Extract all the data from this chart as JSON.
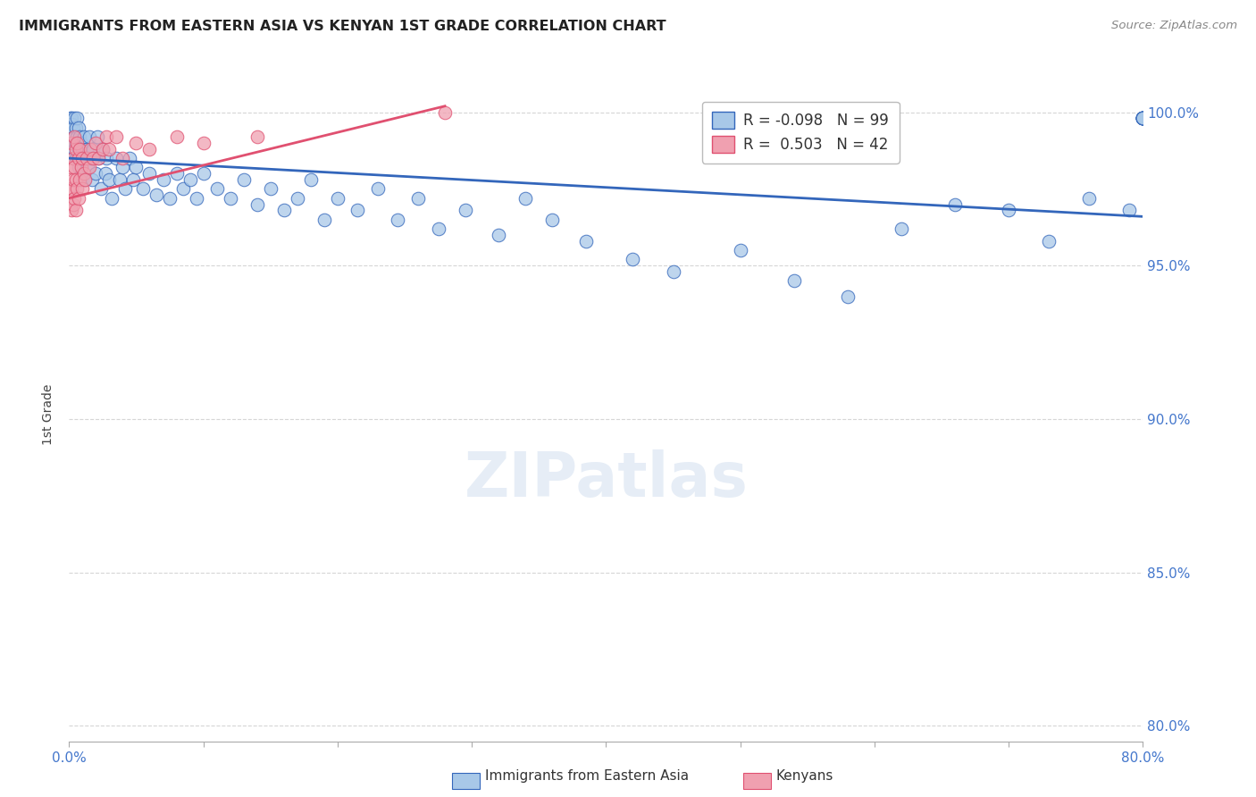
{
  "title": "IMMIGRANTS FROM EASTERN ASIA VS KENYAN 1ST GRADE CORRELATION CHART",
  "source": "Source: ZipAtlas.com",
  "ylabel": "1st Grade",
  "xmin": 0.0,
  "xmax": 0.8,
  "ymin": 0.795,
  "ymax": 1.008,
  "yticks": [
    1.0,
    0.95,
    0.9,
    0.85,
    0.8
  ],
  "ytick_labels": [
    "100.0%",
    "95.0%",
    "90.0%",
    "85.0%",
    "80.0%"
  ],
  "xticks": [
    0.0,
    0.1,
    0.2,
    0.3,
    0.4,
    0.5,
    0.6,
    0.7,
    0.8
  ],
  "xtick_labels": [
    "0.0%",
    "",
    "",
    "",
    "",
    "",
    "",
    "",
    "80.0%"
  ],
  "blue_R": "-0.098",
  "blue_N": "99",
  "pink_R": "0.503",
  "pink_N": "42",
  "blue_color": "#a8c8e8",
  "pink_color": "#f0a0b0",
  "blue_line_color": "#3366bb",
  "pink_line_color": "#e05070",
  "blue_trend_x": [
    0.0,
    0.8
  ],
  "blue_trend_y": [
    0.985,
    0.966
  ],
  "pink_trend_x": [
    0.0,
    0.28
  ],
  "pink_trend_y": [
    0.972,
    1.002
  ],
  "blue_x": [
    0.001,
    0.002,
    0.002,
    0.003,
    0.003,
    0.003,
    0.004,
    0.004,
    0.004,
    0.005,
    0.005,
    0.005,
    0.006,
    0.006,
    0.006,
    0.007,
    0.007,
    0.007,
    0.008,
    0.008,
    0.009,
    0.009,
    0.01,
    0.01,
    0.011,
    0.012,
    0.012,
    0.013,
    0.014,
    0.015,
    0.016,
    0.017,
    0.018,
    0.02,
    0.021,
    0.022,
    0.024,
    0.025,
    0.027,
    0.028,
    0.03,
    0.032,
    0.035,
    0.038,
    0.04,
    0.042,
    0.045,
    0.048,
    0.05,
    0.055,
    0.06,
    0.065,
    0.07,
    0.075,
    0.08,
    0.085,
    0.09,
    0.095,
    0.1,
    0.11,
    0.12,
    0.13,
    0.14,
    0.15,
    0.16,
    0.17,
    0.18,
    0.19,
    0.2,
    0.215,
    0.23,
    0.245,
    0.26,
    0.275,
    0.295,
    0.32,
    0.34,
    0.36,
    0.385,
    0.42,
    0.45,
    0.5,
    0.54,
    0.58,
    0.62,
    0.66,
    0.7,
    0.73,
    0.76,
    0.79,
    0.8,
    0.8,
    0.8,
    0.8,
    0.8,
    0.8,
    0.8,
    0.8,
    0.8
  ],
  "blue_y": [
    0.998,
    0.998,
    0.996,
    0.995,
    0.99,
    0.985,
    0.998,
    0.992,
    0.988,
    0.995,
    0.99,
    0.985,
    0.998,
    0.992,
    0.985,
    0.995,
    0.988,
    0.982,
    0.992,
    0.985,
    0.99,
    0.982,
    0.988,
    0.978,
    0.992,
    0.985,
    0.978,
    0.988,
    0.982,
    0.992,
    0.985,
    0.978,
    0.988,
    0.98,
    0.992,
    0.985,
    0.975,
    0.988,
    0.98,
    0.985,
    0.978,
    0.972,
    0.985,
    0.978,
    0.982,
    0.975,
    0.985,
    0.978,
    0.982,
    0.975,
    0.98,
    0.973,
    0.978,
    0.972,
    0.98,
    0.975,
    0.978,
    0.972,
    0.98,
    0.975,
    0.972,
    0.978,
    0.97,
    0.975,
    0.968,
    0.972,
    0.978,
    0.965,
    0.972,
    0.968,
    0.975,
    0.965,
    0.972,
    0.962,
    0.968,
    0.96,
    0.972,
    0.965,
    0.958,
    0.952,
    0.948,
    0.955,
    0.945,
    0.94,
    0.962,
    0.97,
    0.968,
    0.958,
    0.972,
    0.968,
    0.998,
    0.998,
    0.998,
    0.998,
    0.998,
    0.998,
    0.998,
    0.998,
    0.998
  ],
  "pink_x": [
    0.001,
    0.001,
    0.002,
    0.002,
    0.002,
    0.003,
    0.003,
    0.003,
    0.004,
    0.004,
    0.004,
    0.005,
    0.005,
    0.005,
    0.006,
    0.006,
    0.007,
    0.007,
    0.008,
    0.008,
    0.009,
    0.01,
    0.01,
    0.011,
    0.012,
    0.013,
    0.015,
    0.016,
    0.018,
    0.02,
    0.022,
    0.025,
    0.028,
    0.03,
    0.035,
    0.04,
    0.05,
    0.06,
    0.08,
    0.1,
    0.14,
    0.28
  ],
  "pink_y": [
    0.982,
    0.975,
    0.99,
    0.975,
    0.968,
    0.985,
    0.978,
    0.97,
    0.992,
    0.982,
    0.972,
    0.988,
    0.978,
    0.968,
    0.99,
    0.975,
    0.985,
    0.972,
    0.988,
    0.978,
    0.982,
    0.985,
    0.975,
    0.98,
    0.978,
    0.985,
    0.982,
    0.988,
    0.985,
    0.99,
    0.985,
    0.988,
    0.992,
    0.988,
    0.992,
    0.985,
    0.99,
    0.988,
    0.992,
    0.99,
    0.992,
    1.0
  ]
}
